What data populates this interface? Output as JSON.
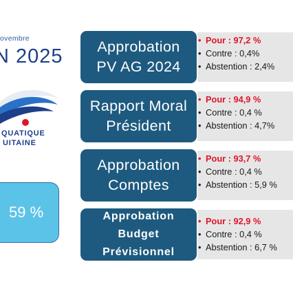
{
  "logo": {
    "date_fragment": "ovembre",
    "year_fragment": "N 2025",
    "line1": "QUATIQUE",
    "line2": "UITAINE"
  },
  "participation": {
    "value": "59 %"
  },
  "votes": [
    {
      "title_lines": [
        "Approbation",
        "PV AG 2024"
      ],
      "pour": "Pour : 97,2 %",
      "contre": "Contre : 0,4%",
      "abstention": "Abstention : 2,4%"
    },
    {
      "title_lines": [
        "Rapport Moral",
        "Président"
      ],
      "pour": "Pour : 94,9 %",
      "contre": "Contre : 0,4 %",
      "abstention": "Abstention : 4,7%"
    },
    {
      "title_lines": [
        "Approbation",
        "Comptes"
      ],
      "pour": "Pour : 93,7 %",
      "contre": "Contre : 0,4 %",
      "abstention": "Abstention : 5,9 %"
    },
    {
      "title_lines": [
        "Approbation",
        "Budget",
        "Prévisionnel"
      ],
      "pour": "Pour : 92,9 %",
      "contre": "Contre : 0,4 %",
      "abstention": "Abstention : 6,7 %"
    }
  ],
  "colors": {
    "label_bg": "#1e5a7f",
    "stats_bg": "#e6e6e6",
    "pour": "#e0152a",
    "participation_bg": "#5cc3e8",
    "logo_blue": "#1e3f8a"
  }
}
